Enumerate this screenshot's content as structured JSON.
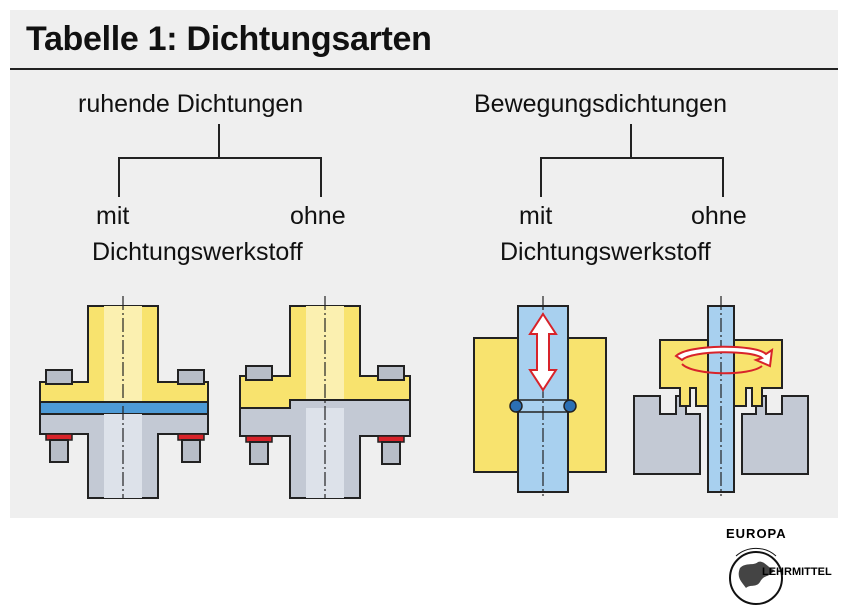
{
  "title": "Tabelle 1:  Dichtungsarten",
  "groups": {
    "static": {
      "label": "ruhende Dichtungen",
      "with": "mit",
      "without": "ohne",
      "material": "Dichtungswerkstoff"
    },
    "dynamic": {
      "label": "Bewegungsdichtungen",
      "with": "mit",
      "without": "ohne",
      "material": "Dichtungswerkstoff"
    }
  },
  "logo": {
    "top": "EUROPA",
    "side": "LEHRMITTEL"
  },
  "colors": {
    "yellow": "#f8e36e",
    "gray": "#c3c9d4",
    "blue_gasket": "#4d9ad6",
    "red_seal": "#d8232a",
    "shaft_blue": "#a8d0ef",
    "panel": "#efefef"
  }
}
